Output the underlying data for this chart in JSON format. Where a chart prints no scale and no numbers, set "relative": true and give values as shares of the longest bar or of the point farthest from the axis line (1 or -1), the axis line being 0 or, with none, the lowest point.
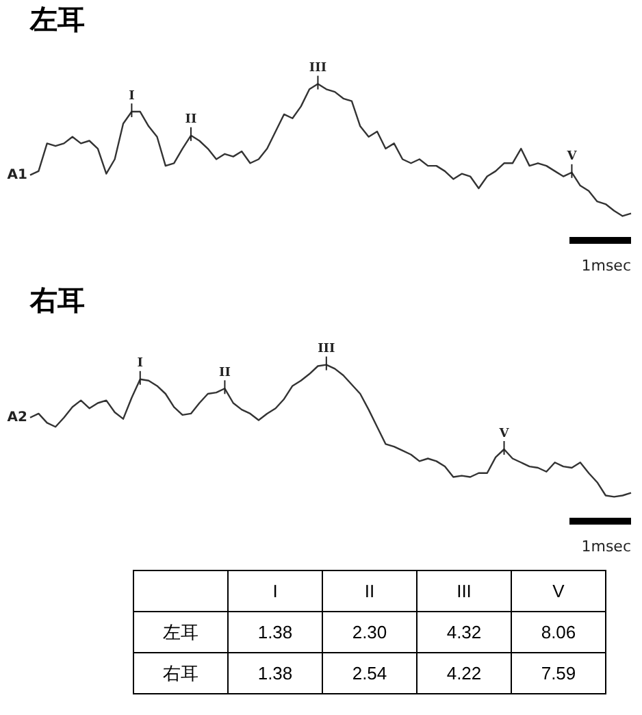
{
  "chart_data": [
    {
      "type": "line",
      "title": "左耳",
      "relative": true,
      "color": "#333333",
      "marker": "none",
      "legend": false,
      "categories": [
        null,
        null,
        null,
        null,
        null,
        null,
        null,
        null,
        null,
        null,
        null,
        null,
        null,
        null,
        null,
        null,
        null,
        null,
        null,
        null,
        null,
        null,
        null,
        null,
        null,
        null,
        null,
        null,
        null,
        null,
        null,
        null,
        null,
        null,
        null,
        null,
        null,
        null,
        null,
        null,
        null,
        null,
        null,
        null,
        null,
        null,
        null,
        null,
        null,
        null,
        null,
        null,
        null,
        null,
        null,
        null,
        null,
        null,
        null,
        null,
        null,
        null,
        null,
        null,
        null,
        null,
        null,
        null,
        null,
        null,
        null,
        null
      ],
      "values": [
        0.31,
        0.34,
        0.55,
        0.53,
        0.55,
        0.6,
        0.55,
        0.57,
        0.51,
        0.32,
        0.43,
        0.7,
        0.79,
        0.79,
        0.68,
        0.6,
        0.38,
        0.4,
        0.51,
        0.61,
        0.57,
        0.51,
        0.43,
        0.47,
        0.45,
        0.49,
        0.4,
        0.43,
        0.51,
        0.64,
        0.77,
        0.74,
        0.83,
        0.96,
        1,
        0.96,
        0.94,
        0.89,
        0.87,
        0.68,
        0.6,
        0.64,
        0.51,
        0.55,
        0.43,
        0.4,
        0.43,
        0.38,
        0.38,
        0.34,
        0.28,
        0.32,
        0.3,
        0.21,
        0.3,
        0.34,
        0.4,
        0.4,
        0.51,
        0.38,
        0.4,
        0.38,
        0.34,
        0.3,
        0.33,
        0.23,
        0.19,
        0.11,
        0.09,
        0.04,
        0,
        0.02
      ],
      "annotations": [
        "A1",
        "1msec",
        {
          "text": "I",
          "y": 0.79
        },
        {
          "text": "II",
          "y": 0.61
        },
        {
          "text": "III",
          "y": 1
        },
        {
          "text": "V",
          "y": 0.33
        }
      ]
    },
    {
      "type": "line",
      "title": "右耳",
      "relative": true,
      "color": "#333333",
      "marker": "none",
      "legend": false,
      "categories": [
        null,
        null,
        null,
        null,
        null,
        null,
        null,
        null,
        null,
        null,
        null,
        null,
        null,
        null,
        null,
        null,
        null,
        null,
        null,
        null,
        null,
        null,
        null,
        null,
        null,
        null,
        null,
        null,
        null,
        null,
        null,
        null,
        null,
        null,
        null,
        null,
        null,
        null,
        null,
        null,
        null,
        null,
        null,
        null,
        null,
        null,
        null,
        null,
        null,
        null,
        null,
        null,
        null,
        null,
        null,
        null,
        null,
        null,
        null,
        null,
        null,
        null,
        null,
        null,
        null,
        null,
        null,
        null,
        null,
        null,
        null,
        null
      ],
      "values": [
        0.6,
        0.63,
        0.56,
        0.53,
        0.6,
        0.68,
        0.73,
        0.67,
        0.71,
        0.73,
        0.64,
        0.59,
        0.75,
        0.89,
        0.88,
        0.84,
        0.78,
        0.68,
        0.62,
        0.63,
        0.71,
        0.78,
        0.79,
        0.82,
        0.71,
        0.66,
        0.63,
        0.58,
        0.63,
        0.67,
        0.74,
        0.84,
        0.88,
        0.93,
        0.99,
        1,
        0.97,
        0.92,
        0.85,
        0.78,
        0.66,
        0.53,
        0.4,
        0.38,
        0.35,
        0.32,
        0.27,
        0.29,
        0.27,
        0.23,
        0.15,
        0.16,
        0.15,
        0.18,
        0.18,
        0.3,
        0.36,
        0.29,
        0.26,
        0.23,
        0.22,
        0.19,
        0.26,
        0.23,
        0.22,
        0.26,
        0.18,
        0.11,
        0.01,
        0,
        0.01,
        0.03
      ],
      "annotations": [
        "A2",
        "1msec",
        {
          "text": "I",
          "y": 0.89
        },
        {
          "text": "II",
          "y": 0.82
        },
        {
          "text": "III",
          "y": 1
        },
        {
          "text": "V",
          "y": 0.36
        }
      ]
    },
    {
      "type": "heatmap",
      "color": "#ffffff",
      "data_labels": true,
      "categories": [
        "I",
        "II",
        "III",
        "V"
      ],
      "y_categories": [
        "左耳",
        "右耳"
      ],
      "cells": [
        [
          1.38,
          2.3,
          4.32,
          8.06
        ],
        [
          1.38,
          2.54,
          4.22,
          7.59
        ]
      ],
      "cell_labels": [
        [
          "1.38",
          "2.30",
          "4.32",
          "8.06"
        ],
        [
          "1.38",
          "2.54",
          "4.22",
          "7.59"
        ]
      ]
    }
  ]
}
